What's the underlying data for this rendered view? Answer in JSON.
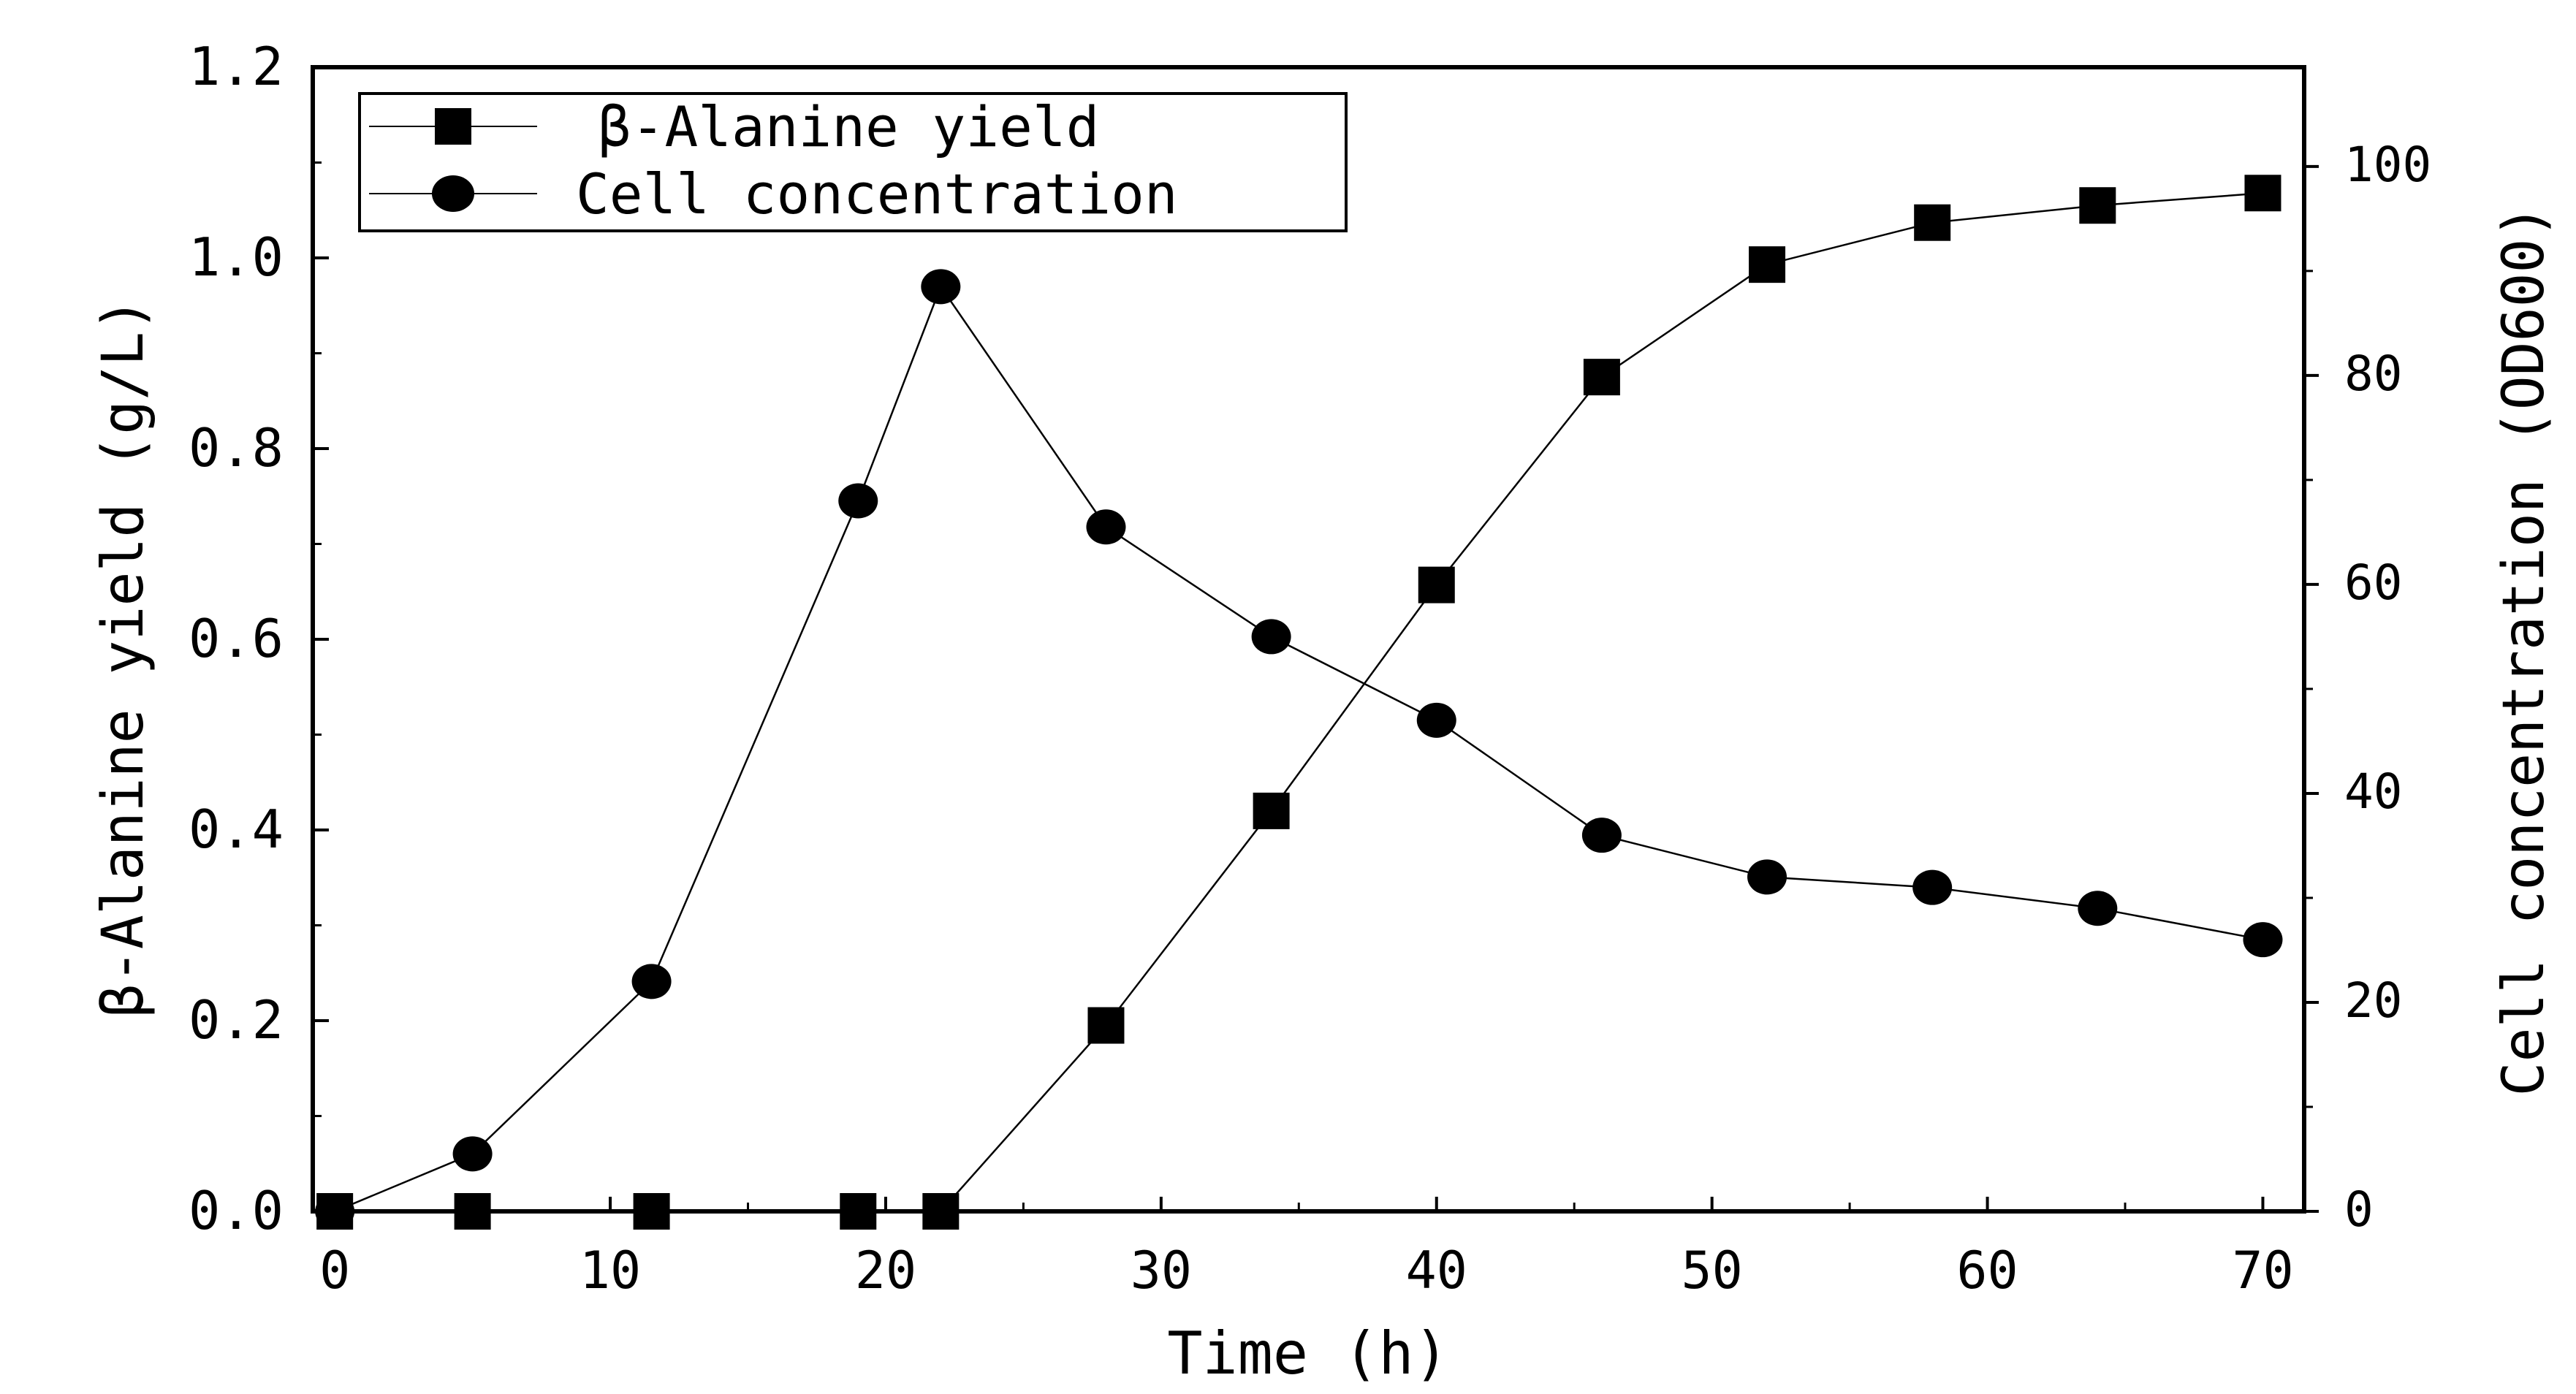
{
  "chart_data": {
    "type": "line",
    "title": "",
    "xlabel": "Time (h)",
    "ylabel": "β-Alanine yield (g/L)",
    "y2label": "Cell concentration (OD600)",
    "xlim": [
      -0.8,
      71.5
    ],
    "ylim": [
      0.0,
      1.2
    ],
    "y2lim": [
      0,
      109.5
    ],
    "grid": false,
    "legend_position": "top-left",
    "x_ticks": [
      "0",
      "10",
      "20",
      "30",
      "40",
      "50",
      "60",
      "70"
    ],
    "y_ticks": [
      "0.0",
      "0.2",
      "0.4",
      "0.6",
      "0.8",
      "1.0",
      "1.2"
    ],
    "y2_ticks": [
      "0",
      "20",
      "40",
      "60",
      "80",
      "100"
    ],
    "series": [
      {
        "name": "β-Alanine yield",
        "axis": "left",
        "marker": "square",
        "x": [
          0,
          5,
          11.5,
          19,
          22,
          28,
          34,
          40,
          46,
          52,
          58,
          64,
          70
        ],
        "values": [
          0.0,
          0.0,
          0.0,
          0.0,
          0.0,
          0.195,
          0.42,
          0.657,
          0.875,
          0.993,
          1.037,
          1.055,
          1.068
        ]
      },
      {
        "name": "Cell concentration",
        "axis": "right",
        "marker": "circle",
        "x": [
          0,
          5,
          11.5,
          19,
          22,
          28,
          34,
          40,
          46,
          52,
          58,
          64,
          70
        ],
        "values": [
          0,
          5.5,
          22,
          68,
          88.5,
          65.5,
          55,
          47,
          36,
          32,
          31,
          29,
          26
        ]
      }
    ]
  }
}
